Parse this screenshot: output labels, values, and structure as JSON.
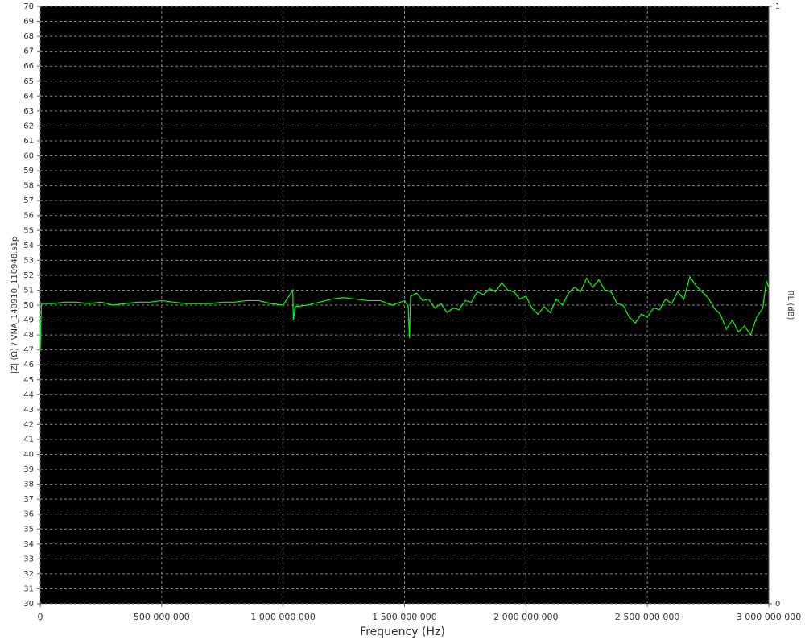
{
  "chart_data": {
    "type": "line",
    "xlabel": "Frequency (Hz)",
    "ylabel": "|Z| (Ω) / VNA_140910_110948.s1p",
    "y2label": "RL (dB)",
    "x": [
      0,
      5000000,
      50000000,
      100000000,
      150000000,
      200000000,
      250000000,
      300000000,
      350000000,
      400000000,
      450000000,
      500000000,
      550000000,
      600000000,
      650000000,
      700000000,
      750000000,
      800000000,
      850000000,
      900000000,
      950000000,
      1000000000,
      1040000000,
      1042000000,
      1050000000,
      1100000000,
      1150000000,
      1200000000,
      1250000000,
      1300000000,
      1350000000,
      1400000000,
      1450000000,
      1500000000,
      1515000000,
      1520000000,
      1525000000,
      1550000000,
      1575000000,
      1600000000,
      1625000000,
      1650000000,
      1675000000,
      1700000000,
      1725000000,
      1750000000,
      1775000000,
      1800000000,
      1825000000,
      1850000000,
      1875000000,
      1900000000,
      1925000000,
      1950000000,
      1975000000,
      2000000000,
      2025000000,
      2050000000,
      2075000000,
      2100000000,
      2125000000,
      2150000000,
      2175000000,
      2200000000,
      2225000000,
      2250000000,
      2275000000,
      2300000000,
      2325000000,
      2350000000,
      2375000000,
      2400000000,
      2425000000,
      2450000000,
      2475000000,
      2500000000,
      2525000000,
      2550000000,
      2575000000,
      2600000000,
      2625000000,
      2650000000,
      2675000000,
      2700000000,
      2725000000,
      2750000000,
      2775000000,
      2800000000,
      2825000000,
      2850000000,
      2875000000,
      2900000000,
      2925000000,
      2950000000,
      2975000000,
      2990000000,
      3000000000
    ],
    "series": [
      {
        "color": "#00ff00",
        "values": [
          47,
          50.1,
          50.1,
          50.2,
          50.2,
          50.1,
          50.2,
          50.0,
          50.1,
          50.2,
          50.2,
          50.3,
          50.2,
          50.1,
          50.1,
          50.1,
          50.2,
          50.2,
          50.3,
          50.3,
          50.1,
          50.0,
          51.0,
          49.0,
          49.9,
          50.0,
          50.2,
          50.4,
          50.5,
          50.4,
          50.3,
          50.3,
          50.0,
          50.3,
          49.9,
          47.8,
          50.6,
          50.8,
          50.3,
          50.4,
          49.8,
          50.1,
          49.5,
          49.8,
          49.7,
          50.3,
          50.2,
          50.9,
          50.7,
          51.1,
          50.9,
          51.5,
          51.0,
          50.9,
          50.4,
          50.6,
          49.8,
          49.4,
          49.9,
          49.5,
          50.4,
          50.0,
          50.8,
          51.2,
          50.9,
          51.8,
          51.2,
          51.7,
          51.0,
          50.9,
          50.1,
          50.0,
          49.2,
          48.8,
          49.4,
          49.2,
          49.8,
          49.7,
          50.4,
          50.1,
          50.9,
          50.4,
          51.9,
          51.3,
          50.9,
          50.5,
          49.8,
          49.4,
          48.4,
          49.0,
          48.2,
          48.6,
          48.0,
          49.2,
          49.8,
          51.6,
          51.2
        ]
      }
    ],
    "xlim": [
      0,
      3000000000
    ],
    "xticks": [
      0,
      {
        "value": 500000000,
        "label": "500 000 000"
      },
      {
        "value": 1000000000,
        "label": "1 000 000 000"
      },
      {
        "value": 1500000000,
        "label": "1 500 000 000"
      },
      {
        "value": 2000000000,
        "label": "2 000 000 000"
      },
      {
        "value": 2500000000,
        "label": "2 500 000 000"
      },
      {
        "value": 3000000000,
        "label": "3 000 000 000"
      }
    ],
    "ylim": [
      30,
      70
    ],
    "yticks": [
      30,
      31,
      32,
      33,
      34,
      35,
      36,
      37,
      38,
      39,
      40,
      41,
      42,
      43,
      44,
      45,
      46,
      47,
      48,
      49,
      50,
      51,
      52,
      53,
      54,
      55,
      56,
      57,
      58,
      59,
      60,
      61,
      62,
      63,
      64,
      65,
      66,
      67,
      68,
      69,
      70
    ],
    "y2lim": [
      0,
      1
    ],
    "y2ticks": [
      0,
      1
    ],
    "grid": true,
    "background": "#000000"
  }
}
